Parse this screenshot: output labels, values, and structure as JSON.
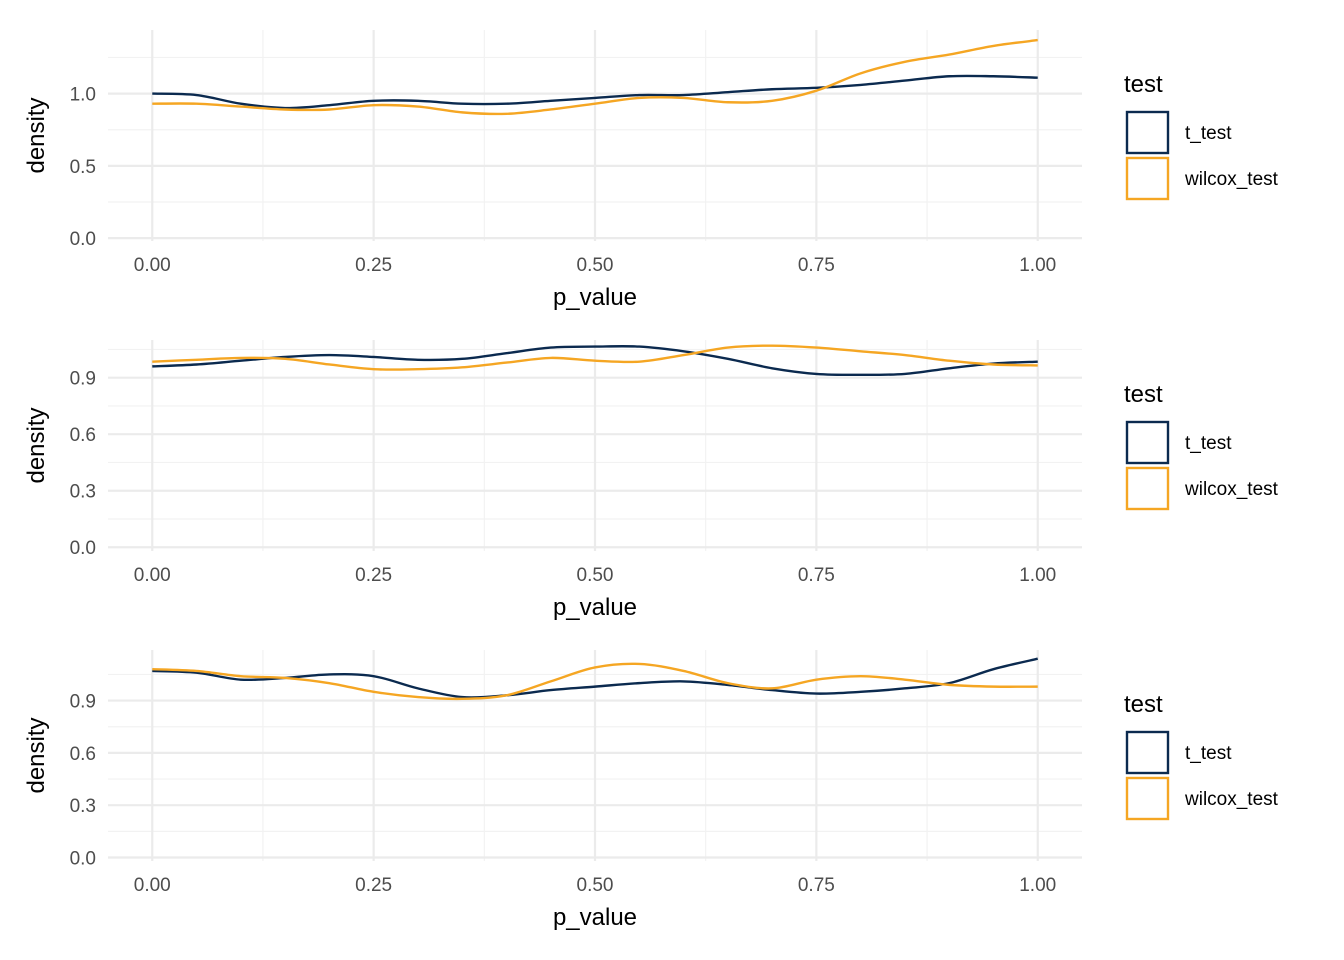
{
  "chart_data": [
    {
      "type": "line",
      "xlabel": "p_value",
      "ylabel": "density",
      "xlim": [
        -0.05,
        1.05
      ],
      "ylim": [
        -0.02,
        1.44
      ],
      "xticks": [
        0.0,
        0.25,
        0.5,
        0.75,
        1.0
      ],
      "xtick_labels": [
        "0.00",
        "0.25",
        "0.50",
        "0.75",
        "1.00"
      ],
      "yticks": [
        0.0,
        0.5,
        1.0
      ],
      "ytick_labels": [
        "0.0",
        "0.5",
        "1.0"
      ],
      "grid": true,
      "legend": {
        "title": "test",
        "position": "right",
        "entries": [
          "t_test",
          "wilcox_test"
        ]
      },
      "series": [
        {
          "name": "t_test",
          "color": "#0b2a4f",
          "x": [
            0,
            0.05,
            0.1,
            0.15,
            0.2,
            0.25,
            0.3,
            0.35,
            0.4,
            0.45,
            0.5,
            0.55,
            0.6,
            0.65,
            0.7,
            0.75,
            0.8,
            0.85,
            0.9,
            0.95,
            1.0
          ],
          "y": [
            1.0,
            0.99,
            0.93,
            0.9,
            0.92,
            0.95,
            0.95,
            0.93,
            0.93,
            0.95,
            0.97,
            0.99,
            0.99,
            1.01,
            1.03,
            1.04,
            1.06,
            1.09,
            1.12,
            1.12,
            1.11
          ]
        },
        {
          "name": "wilcox_test",
          "color": "#f5a623",
          "x": [
            0,
            0.05,
            0.1,
            0.15,
            0.2,
            0.25,
            0.3,
            0.35,
            0.4,
            0.45,
            0.5,
            0.55,
            0.6,
            0.65,
            0.7,
            0.75,
            0.8,
            0.85,
            0.9,
            0.95,
            1.0
          ],
          "y": [
            0.93,
            0.93,
            0.91,
            0.89,
            0.89,
            0.92,
            0.91,
            0.87,
            0.86,
            0.89,
            0.93,
            0.97,
            0.97,
            0.94,
            0.95,
            1.02,
            1.14,
            1.22,
            1.27,
            1.33,
            1.37
          ]
        }
      ]
    },
    {
      "type": "line",
      "xlabel": "p_value",
      "ylabel": "density",
      "xlim": [
        -0.05,
        1.05
      ],
      "ylim": [
        -0.02,
        1.1
      ],
      "xticks": [
        0.0,
        0.25,
        0.5,
        0.75,
        1.0
      ],
      "xtick_labels": [
        "0.00",
        "0.25",
        "0.50",
        "0.75",
        "1.00"
      ],
      "yticks": [
        0.0,
        0.3,
        0.6,
        0.9
      ],
      "ytick_labels": [
        "0.0",
        "0.3",
        "0.6",
        "0.9"
      ],
      "grid": true,
      "legend": {
        "title": "test",
        "position": "right",
        "entries": [
          "t_test",
          "wilcox_test"
        ]
      },
      "series": [
        {
          "name": "t_test",
          "color": "#0b2a4f",
          "x": [
            0,
            0.05,
            0.1,
            0.15,
            0.2,
            0.25,
            0.3,
            0.35,
            0.4,
            0.45,
            0.5,
            0.55,
            0.6,
            0.65,
            0.7,
            0.75,
            0.8,
            0.85,
            0.9,
            0.95,
            1.0
          ],
          "y": [
            0.96,
            0.97,
            0.99,
            1.01,
            1.02,
            1.01,
            0.995,
            1.0,
            1.03,
            1.06,
            1.065,
            1.065,
            1.04,
            1.0,
            0.95,
            0.92,
            0.915,
            0.92,
            0.95,
            0.975,
            0.985
          ]
        },
        {
          "name": "wilcox_test",
          "color": "#f5a623",
          "x": [
            0,
            0.05,
            0.1,
            0.15,
            0.2,
            0.25,
            0.3,
            0.35,
            0.4,
            0.45,
            0.5,
            0.55,
            0.6,
            0.65,
            0.7,
            0.75,
            0.8,
            0.85,
            0.9,
            0.95,
            1.0
          ],
          "y": [
            0.985,
            0.995,
            1.005,
            1.0,
            0.97,
            0.945,
            0.945,
            0.955,
            0.98,
            1.005,
            0.99,
            0.985,
            1.02,
            1.06,
            1.07,
            1.06,
            1.04,
            1.02,
            0.99,
            0.97,
            0.965
          ]
        }
      ]
    },
    {
      "type": "line",
      "xlabel": "p_value",
      "ylabel": "density",
      "xlim": [
        -0.05,
        1.05
      ],
      "ylim": [
        -0.02,
        1.19
      ],
      "xticks": [
        0.0,
        0.25,
        0.5,
        0.75,
        1.0
      ],
      "xtick_labels": [
        "0.00",
        "0.25",
        "0.50",
        "0.75",
        "1.00"
      ],
      "yticks": [
        0.0,
        0.3,
        0.6,
        0.9
      ],
      "ytick_labels": [
        "0.0",
        "0.3",
        "0.6",
        "0.9"
      ],
      "grid": true,
      "legend": {
        "title": "test",
        "position": "right",
        "entries": [
          "t_test",
          "wilcox_test"
        ]
      },
      "series": [
        {
          "name": "t_test",
          "color": "#0b2a4f",
          "x": [
            0,
            0.05,
            0.1,
            0.15,
            0.2,
            0.25,
            0.3,
            0.35,
            0.4,
            0.45,
            0.5,
            0.55,
            0.6,
            0.65,
            0.7,
            0.75,
            0.8,
            0.85,
            0.9,
            0.95,
            1.0
          ],
          "y": [
            1.07,
            1.06,
            1.02,
            1.03,
            1.05,
            1.04,
            0.97,
            0.92,
            0.93,
            0.96,
            0.98,
            1.0,
            1.01,
            0.99,
            0.96,
            0.94,
            0.95,
            0.97,
            1.0,
            1.08,
            1.14
          ]
        },
        {
          "name": "wilcox_test",
          "color": "#f5a623",
          "x": [
            0,
            0.05,
            0.1,
            0.15,
            0.2,
            0.25,
            0.3,
            0.35,
            0.4,
            0.45,
            0.5,
            0.55,
            0.6,
            0.65,
            0.7,
            0.75,
            0.8,
            0.85,
            0.9,
            0.95,
            1.0
          ],
          "y": [
            1.08,
            1.07,
            1.04,
            1.03,
            1.0,
            0.95,
            0.92,
            0.91,
            0.93,
            1.01,
            1.09,
            1.11,
            1.07,
            1.0,
            0.97,
            1.02,
            1.04,
            1.02,
            0.99,
            0.98,
            0.98
          ]
        }
      ]
    }
  ]
}
